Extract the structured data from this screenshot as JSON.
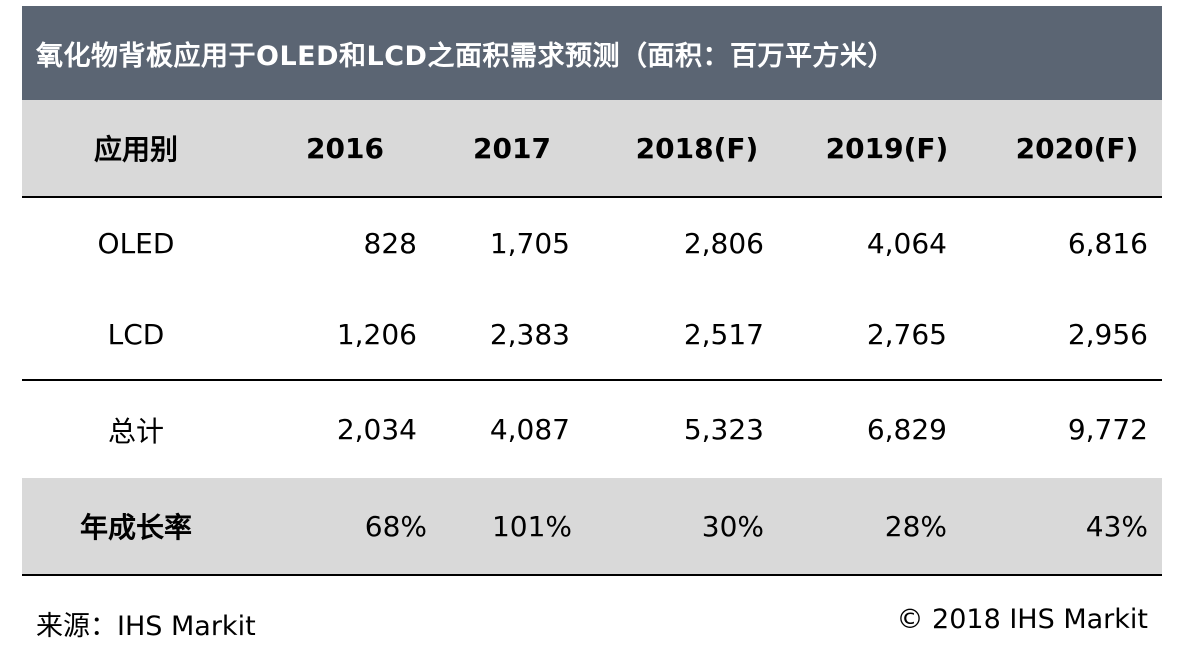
{
  "chart_data": {
    "type": "table",
    "title": "氧化物背板应用于OLED和LCD之面积需求预测（面积：百万平方米）",
    "header": {
      "category_label": "应用别",
      "years": [
        "2016",
        "2017",
        "2018(F)",
        "2019(F)",
        "2020(F)"
      ]
    },
    "rows": [
      {
        "label": "OLED",
        "values": [
          "828",
          "1,705",
          "2,806",
          "4,064",
          "6,816"
        ]
      },
      {
        "label": "LCD",
        "values": [
          "1,206",
          "2,383",
          "2,517",
          "2,765",
          "2,956"
        ]
      },
      {
        "label": "总计",
        "values": [
          "2,034",
          "4,087",
          "5,323",
          "6,829",
          "9,772"
        ]
      },
      {
        "label": "年成长率",
        "values": [
          "68%",
          "101%",
          "30%",
          "28%",
          "43%"
        ]
      }
    ],
    "numeric": {
      "OLED": [
        828,
        1705,
        2806,
        4064,
        6816
      ],
      "LCD": [
        1206,
        2383,
        2517,
        2765,
        2956
      ],
      "total": [
        2034,
        4087,
        5323,
        6829,
        9772
      ],
      "growth_pct": [
        68,
        101,
        30,
        28,
        43
      ]
    },
    "unit": "百万平方米"
  },
  "footer": {
    "source": "来源：IHS Markit",
    "copyright": "© 2018 IHS Markit"
  },
  "colors": {
    "title_bg": "#5b6573",
    "title_text": "#ffffff",
    "header_bg": "#d9d9d9",
    "rule": "#000000"
  }
}
